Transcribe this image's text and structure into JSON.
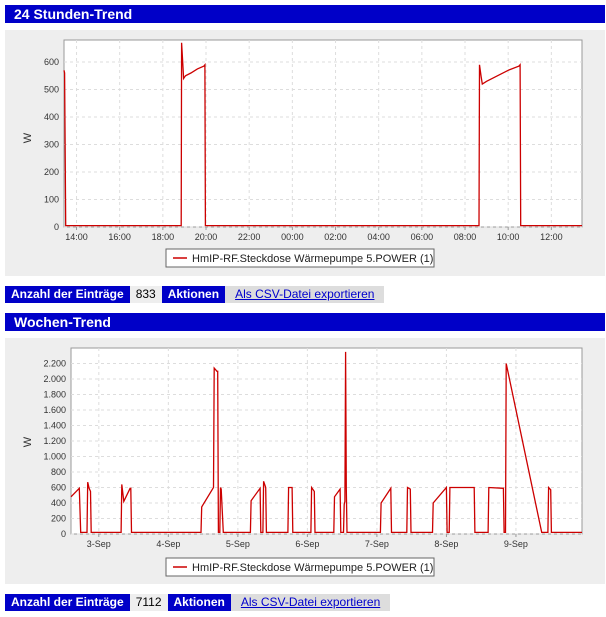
{
  "chart_data": [
    {
      "type": "line",
      "title": "24 Stunden-Trend",
      "ylabel": "W",
      "ylim": [
        0,
        680
      ],
      "yticks": [
        0,
        100,
        200,
        300,
        400,
        500,
        600
      ],
      "xlim": [
        13.42,
        37.42
      ],
      "xticks": [
        14,
        16,
        18,
        20,
        22,
        24,
        26,
        28,
        30,
        32,
        34,
        36
      ],
      "xtick_labels": [
        "14:00",
        "16:00",
        "18:00",
        "20:00",
        "22:00",
        "00:00",
        "02:00",
        "04:00",
        "06:00",
        "08:00",
        "10:00",
        "12:00"
      ],
      "grid": true,
      "legend_position": "bottom",
      "series": [
        {
          "name": "HmIP-RF.Steckdose Wärmepumpe 5.POWER (1)",
          "color": "#cc0000",
          "x": [
            13.42,
            13.45,
            13.5,
            18.85,
            18.87,
            18.92,
            18.96,
            19.05,
            19.3,
            19.6,
            19.9,
            19.95,
            19.97,
            32.65,
            32.67,
            32.75,
            32.8,
            33.0,
            33.5,
            34.0,
            34.5,
            34.55,
            34.58,
            37.42
          ],
          "values": [
            570,
            560,
            5,
            5,
            670,
            600,
            540,
            550,
            560,
            575,
            585,
            590,
            5,
            5,
            590,
            545,
            520,
            530,
            550,
            570,
            585,
            590,
            5,
            5
          ]
        }
      ]
    },
    {
      "type": "line",
      "title": "Wochen-Trend",
      "ylabel": "W",
      "ylim": [
        0,
        2400
      ],
      "yticks": [
        0,
        200,
        400,
        600,
        800,
        1000,
        1200,
        1400,
        1600,
        1800,
        2000,
        2200
      ],
      "ytick_labels": [
        "0",
        "200",
        "400",
        "600",
        "800",
        "1.000",
        "1.200",
        "1.400",
        "1.600",
        "1.800",
        "2.000",
        "2.200"
      ],
      "xlim": [
        2.6,
        9.95
      ],
      "xticks": [
        3,
        4,
        5,
        6,
        7,
        8,
        9
      ],
      "xtick_labels": [
        "3-Sep",
        "4-Sep",
        "5-Sep",
        "6-Sep",
        "7-Sep",
        "8-Sep",
        "9-Sep"
      ],
      "grid": true,
      "legend_position": "bottom",
      "series": [
        {
          "name": "HmIP-RF.Steckdose Wärmepumpe 5.POWER (1)",
          "color": "#cc0000",
          "x": [
            2.6,
            2.72,
            2.74,
            2.83,
            2.84,
            2.86,
            2.88,
            2.89,
            3.32,
            3.33,
            3.36,
            3.45,
            3.46,
            3.47,
            4.47,
            4.48,
            4.65,
            4.66,
            4.7,
            4.71,
            4.72,
            4.74,
            4.75,
            4.76,
            4.79,
            4.8,
            5.18,
            5.19,
            5.32,
            5.33,
            5.36,
            5.37,
            5.4,
            5.41,
            5.72,
            5.73,
            5.78,
            5.79,
            6.05,
            6.06,
            6.1,
            6.11,
            6.38,
            6.39,
            6.47,
            6.48,
            6.52,
            6.53,
            6.54,
            6.55,
            6.56,
            6.57,
            7.05,
            7.06,
            7.2,
            7.21,
            7.43,
            7.44,
            7.48,
            7.49,
            7.8,
            7.81,
            8.0,
            8.01,
            8.04,
            8.05,
            8.4,
            8.41,
            8.6,
            8.61,
            8.82,
            8.83,
            8.85,
            8.86,
            9.37,
            9.38,
            9.46,
            9.47,
            9.5,
            9.51,
            9.95
          ],
          "values": [
            480,
            590,
            20,
            20,
            670,
            590,
            550,
            20,
            20,
            640,
            420,
            590,
            590,
            20,
            20,
            350,
            600,
            2140,
            2100,
            2100,
            20,
            20,
            600,
            580,
            20,
            20,
            20,
            430,
            590,
            20,
            20,
            680,
            600,
            20,
            20,
            600,
            600,
            20,
            20,
            600,
            550,
            20,
            20,
            480,
            580,
            20,
            20,
            380,
            420,
            2350,
            590,
            20,
            20,
            400,
            590,
            20,
            20,
            600,
            580,
            20,
            20,
            400,
            600,
            20,
            20,
            600,
            600,
            20,
            20,
            600,
            590,
            20,
            20,
            2200,
            20,
            20,
            20,
            600,
            570,
            20,
            20
          ]
        }
      ]
    }
  ],
  "day": {
    "title": "24 Stunden-Trend",
    "y_axis_label": "W",
    "legend_label": "HmIP-RF.Steckdose Wärmepumpe 5.POWER (1)",
    "entries_label": "Anzahl der Einträge",
    "entries_value": "833",
    "actions_label": "Aktionen",
    "export_link": "Als CSV-Datei exportieren"
  },
  "week": {
    "title": "Wochen-Trend",
    "y_axis_label": "W",
    "legend_label": "HmIP-RF.Steckdose Wärmepumpe 5.POWER (1)",
    "entries_label": "Anzahl der Einträge",
    "entries_value": "7112",
    "actions_label": "Aktionen",
    "export_link": "Als CSV-Datei exportieren"
  }
}
